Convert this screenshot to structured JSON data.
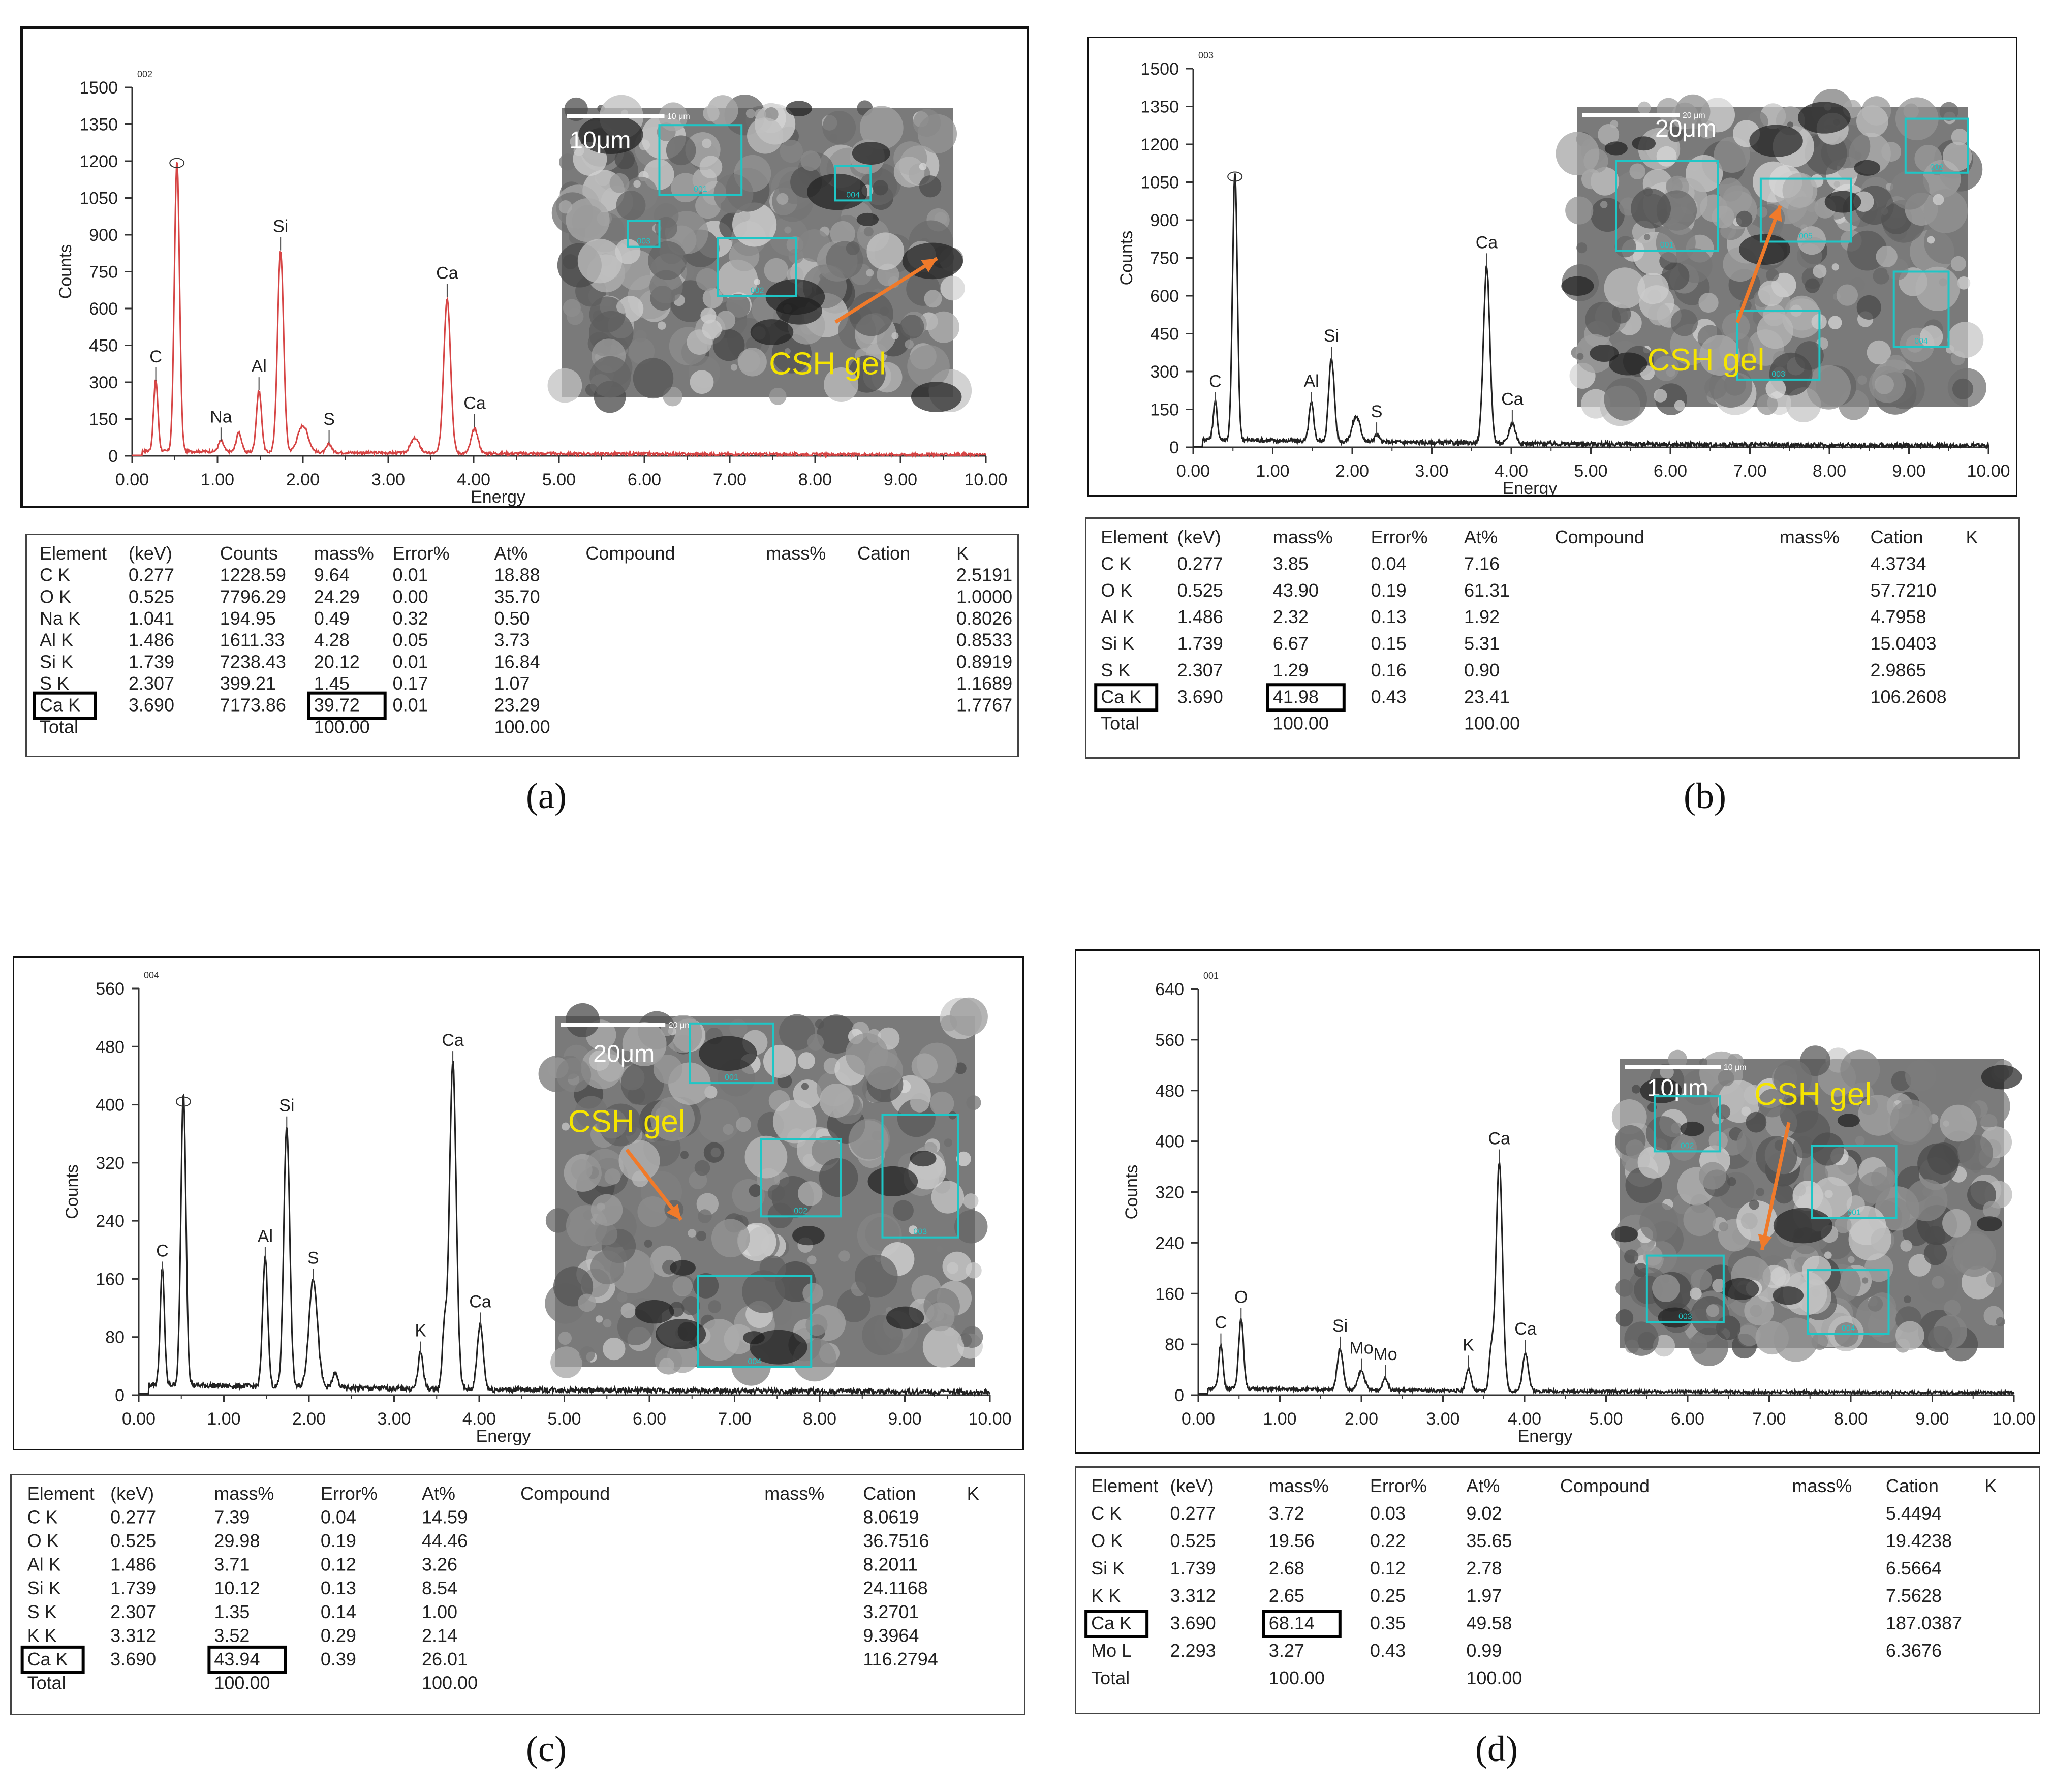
{
  "panels": [
    {
      "caption": "(a)",
      "chart_data": {
        "type": "line",
        "xlabel": "Energy",
        "ylabel": "Counts",
        "spectrum_label": "002",
        "xlim": [
          0,
          10
        ],
        "ylim": [
          0,
          1500
        ],
        "xticks": [
          "0.00",
          "1.00",
          "2.00",
          "3.00",
          "4.00",
          "5.00",
          "6.00",
          "7.00",
          "8.00",
          "9.00",
          "10.00"
        ],
        "yticks": [
          "0",
          "150",
          "300",
          "450",
          "600",
          "750",
          "900",
          "1050",
          "1200",
          "1350",
          "1500"
        ],
        "line_color": "#d64545",
        "baseline": 18,
        "peaks": [
          {
            "x": 0.277,
            "y": 290,
            "w": 0.025
          },
          {
            "x": 0.525,
            "y": 1180,
            "w": 0.03
          },
          {
            "x": 1.041,
            "y": 45,
            "w": 0.03
          },
          {
            "x": 1.25,
            "y": 80,
            "w": 0.03
          },
          {
            "x": 1.486,
            "y": 250,
            "w": 0.03
          },
          {
            "x": 1.739,
            "y": 820,
            "w": 0.035
          },
          {
            "x": 2.0,
            "y": 110,
            "w": 0.06
          },
          {
            "x": 2.307,
            "y": 35,
            "w": 0.03
          },
          {
            "x": 3.312,
            "y": 60,
            "w": 0.05
          },
          {
            "x": 3.69,
            "y": 630,
            "w": 0.04
          },
          {
            "x": 4.012,
            "y": 100,
            "w": 0.04
          }
        ],
        "annotations": [
          {
            "label": "C",
            "x": 0.277,
            "y": 290
          },
          {
            "label": "Na",
            "x": 1.041,
            "y": 45
          },
          {
            "label": "Al",
            "x": 1.486,
            "y": 250
          },
          {
            "label": "Si",
            "x": 1.739,
            "y": 820
          },
          {
            "label": "S",
            "x": 2.307,
            "y": 35
          },
          {
            "label": "Ca",
            "x": 3.69,
            "y": 630
          },
          {
            "label": "Ca",
            "x": 4.012,
            "y": 100
          }
        ]
      },
      "sem": {
        "scale_label": "10μm",
        "scale_small": "10 μm",
        "csh_label": "CSH gel",
        "boxes": [
          "001",
          "002",
          "003",
          "004"
        ]
      },
      "table": {
        "headers": [
          "Element",
          "(keV)",
          "Counts",
          "mass%",
          "Error%",
          "At%",
          "Compound",
          "mass%",
          "Cation",
          "K"
        ],
        "rows": [
          [
            "C  K",
            "0.277",
            "1228.59",
            "9.64",
            "0.01",
            "18.88",
            "",
            "",
            "",
            "2.5191"
          ],
          [
            "O  K",
            "0.525",
            "7796.29",
            "24.29",
            "0.00",
            "35.70",
            "",
            "",
            "",
            "1.0000"
          ],
          [
            "Na K",
            "1.041",
            "194.95",
            "0.49",
            "0.32",
            "0.50",
            "",
            "",
            "",
            "0.8026"
          ],
          [
            "Al K",
            "1.486",
            "1611.33",
            "4.28",
            "0.05",
            "3.73",
            "",
            "",
            "",
            "0.8533"
          ],
          [
            "Si K",
            "1.739",
            "7238.43",
            "20.12",
            "0.01",
            "16.84",
            "",
            "",
            "",
            "0.8919"
          ],
          [
            "S  K",
            "2.307",
            "399.21",
            "1.45",
            "0.17",
            "1.07",
            "",
            "",
            "",
            "1.1689"
          ],
          [
            "Ca K",
            "3.690",
            "7173.86",
            "39.72",
            "0.01",
            "23.29",
            "",
            "",
            "",
            "1.7767"
          ],
          [
            "Total",
            "",
            "",
            "100.00",
            "",
            "100.00",
            "",
            "",
            "",
            ""
          ]
        ]
      }
    },
    {
      "caption": "(b)",
      "chart_data": {
        "type": "line",
        "xlabel": "Energy",
        "ylabel": "Counts",
        "spectrum_label": "003",
        "xlim": [
          0,
          10
        ],
        "ylim": [
          0,
          1500
        ],
        "xticks": [
          "0.00",
          "1.00",
          "2.00",
          "3.00",
          "4.00",
          "5.00",
          "6.00",
          "7.00",
          "8.00",
          "9.00",
          "10.00"
        ],
        "yticks": [
          "0",
          "150",
          "300",
          "450",
          "600",
          "750",
          "900",
          "1050",
          "1200",
          "1350",
          "1500"
        ],
        "line_color": "#222222",
        "baseline": 30,
        "peaks": [
          {
            "x": 0.277,
            "y": 150,
            "w": 0.025
          },
          {
            "x": 0.525,
            "y": 1060,
            "w": 0.03
          },
          {
            "x": 1.486,
            "y": 150,
            "w": 0.03
          },
          {
            "x": 1.739,
            "y": 330,
            "w": 0.035
          },
          {
            "x": 2.05,
            "y": 100,
            "w": 0.05
          },
          {
            "x": 2.307,
            "y": 30,
            "w": 0.03
          },
          {
            "x": 3.69,
            "y": 700,
            "w": 0.04
          },
          {
            "x": 4.012,
            "y": 80,
            "w": 0.04
          }
        ],
        "annotations": [
          {
            "label": "C",
            "x": 0.277,
            "y": 150
          },
          {
            "label": "Al",
            "x": 1.486,
            "y": 150
          },
          {
            "label": "Si",
            "x": 1.739,
            "y": 330
          },
          {
            "label": "S",
            "x": 2.307,
            "y": 30
          },
          {
            "label": "Ca",
            "x": 3.69,
            "y": 700
          },
          {
            "label": "Ca",
            "x": 4.012,
            "y": 80
          }
        ]
      },
      "sem": {
        "scale_label": "20μm",
        "scale_small": "20 μm",
        "csh_label": "CSH gel",
        "boxes": [
          "001",
          "002",
          "003",
          "004",
          "005"
        ]
      },
      "table": {
        "headers": [
          "Element",
          "(keV)",
          "mass%",
          "Error%",
          "At%",
          "Compound",
          "mass%",
          "Cation",
          "K"
        ],
        "rows": [
          [
            "C  K",
            "0.277",
            "3.85",
            "0.04",
            "7.16",
            "",
            "",
            "4.3734",
            ""
          ],
          [
            "O  K",
            "0.525",
            "43.90",
            "0.19",
            "61.31",
            "",
            "",
            "57.7210",
            ""
          ],
          [
            "Al K",
            "1.486",
            "2.32",
            "0.13",
            "1.92",
            "",
            "",
            "4.7958",
            ""
          ],
          [
            "Si K",
            "1.739",
            "6.67",
            "0.15",
            "5.31",
            "",
            "",
            "15.0403",
            ""
          ],
          [
            "S  K",
            "2.307",
            "1.29",
            "0.16",
            "0.90",
            "",
            "",
            "2.9865",
            ""
          ],
          [
            "Ca K",
            "3.690",
            "41.98",
            "0.43",
            "23.41",
            "",
            "",
            "106.2608",
            ""
          ],
          [
            "Total",
            "",
            "100.00",
            "",
            "100.00",
            "",
            "",
            "",
            ""
          ]
        ]
      }
    },
    {
      "caption": "(c)",
      "chart_data": {
        "type": "line",
        "xlabel": "Energy",
        "ylabel": "Counts",
        "spectrum_label": "004",
        "xlim": [
          0,
          10
        ],
        "ylim": [
          0,
          560
        ],
        "xticks": [
          "0.00",
          "1.00",
          "2.00",
          "3.00",
          "4.00",
          "5.00",
          "6.00",
          "7.00",
          "8.00",
          "9.00",
          "10.00"
        ],
        "yticks": [
          "0",
          "80",
          "160",
          "240",
          "320",
          "400",
          "480",
          "560"
        ],
        "line_color": "#222222",
        "baseline": 12,
        "peaks": [
          {
            "x": 0.277,
            "y": 160,
            "w": 0.025
          },
          {
            "x": 0.525,
            "y": 400,
            "w": 0.03
          },
          {
            "x": 1.486,
            "y": 180,
            "w": 0.03
          },
          {
            "x": 1.739,
            "y": 360,
            "w": 0.035
          },
          {
            "x": 2.05,
            "y": 150,
            "w": 0.05
          },
          {
            "x": 2.307,
            "y": 20,
            "w": 0.03
          },
          {
            "x": 3.312,
            "y": 50,
            "w": 0.03
          },
          {
            "x": 3.59,
            "y": 80,
            "w": 0.025
          },
          {
            "x": 3.69,
            "y": 450,
            "w": 0.04
          },
          {
            "x": 4.012,
            "y": 90,
            "w": 0.035
          }
        ],
        "annotations": [
          {
            "label": "C",
            "x": 0.277,
            "y": 160
          },
          {
            "label": "Al",
            "x": 1.486,
            "y": 180
          },
          {
            "label": "Si",
            "x": 1.739,
            "y": 360
          },
          {
            "label": "S",
            "x": 2.05,
            "y": 150
          },
          {
            "label": "K",
            "x": 3.312,
            "y": 50
          },
          {
            "label": "Ca",
            "x": 3.69,
            "y": 450
          },
          {
            "label": "Ca",
            "x": 4.012,
            "y": 90
          }
        ]
      },
      "sem": {
        "scale_label": "20μm",
        "scale_small": "20 μm",
        "csh_label": "CSH gel",
        "boxes": [
          "001",
          "002",
          "003",
          "004"
        ]
      },
      "table": {
        "headers": [
          "Element",
          "(keV)",
          "mass%",
          "Error%",
          "At%",
          "Compound",
          "mass%",
          "Cation",
          "K"
        ],
        "rows": [
          [
            "C  K",
            "0.277",
            "7.39",
            "0.04",
            "14.59",
            "",
            "",
            "8.0619",
            ""
          ],
          [
            "O  K",
            "0.525",
            "29.98",
            "0.19",
            "44.46",
            "",
            "",
            "36.7516",
            ""
          ],
          [
            "Al K",
            "1.486",
            "3.71",
            "0.12",
            "3.26",
            "",
            "",
            "8.2011",
            ""
          ],
          [
            "Si K",
            "1.739",
            "10.12",
            "0.13",
            "8.54",
            "",
            "",
            "24.1168",
            ""
          ],
          [
            "S  K",
            "2.307",
            "1.35",
            "0.14",
            "1.00",
            "",
            "",
            "3.2701",
            ""
          ],
          [
            "K  K",
            "3.312",
            "3.52",
            "0.29",
            "2.14",
            "",
            "",
            "9.3964",
            ""
          ],
          [
            "Ca K",
            "3.690",
            "43.94",
            "0.39",
            "26.01",
            "",
            "",
            "116.2794",
            ""
          ],
          [
            "Total",
            "",
            "100.00",
            "",
            "100.00",
            "",
            "",
            "",
            ""
          ]
        ]
      }
    },
    {
      "caption": "(d)",
      "chart_data": {
        "type": "line",
        "xlabel": "Energy",
        "ylabel": "Counts",
        "spectrum_label": "001",
        "xlim": [
          0,
          10
        ],
        "ylim": [
          0,
          640
        ],
        "xticks": [
          "0.00",
          "1.00",
          "2.00",
          "3.00",
          "4.00",
          "5.00",
          "6.00",
          "7.00",
          "8.00",
          "9.00",
          "10.00"
        ],
        "yticks": [
          "0",
          "80",
          "160",
          "240",
          "320",
          "400",
          "480",
          "560",
          "640"
        ],
        "line_color": "#222222",
        "baseline": 8,
        "peaks": [
          {
            "x": 0.277,
            "y": 70,
            "w": 0.025
          },
          {
            "x": 0.525,
            "y": 110,
            "w": 0.03
          },
          {
            "x": 1.739,
            "y": 65,
            "w": 0.035
          },
          {
            "x": 2.0,
            "y": 30,
            "w": 0.04
          },
          {
            "x": 2.293,
            "y": 20,
            "w": 0.03
          },
          {
            "x": 3.312,
            "y": 35,
            "w": 0.03
          },
          {
            "x": 3.59,
            "y": 60,
            "w": 0.025
          },
          {
            "x": 3.69,
            "y": 360,
            "w": 0.04
          },
          {
            "x": 4.012,
            "y": 60,
            "w": 0.035
          }
        ],
        "annotations": [
          {
            "label": "C",
            "x": 0.277,
            "y": 70
          },
          {
            "label": "O",
            "x": 0.525,
            "y": 110
          },
          {
            "label": "Si",
            "x": 1.739,
            "y": 65
          },
          {
            "label": "Mo",
            "x": 2.0,
            "y": 30
          },
          {
            "label": "Mo",
            "x": 2.293,
            "y": 20
          },
          {
            "label": "K",
            "x": 3.312,
            "y": 35
          },
          {
            "label": "Ca",
            "x": 3.69,
            "y": 360
          },
          {
            "label": "Ca",
            "x": 4.012,
            "y": 60
          }
        ]
      },
      "sem": {
        "scale_label": "10μm",
        "scale_small": "10 μm",
        "csh_label": "CSH gel",
        "boxes": [
          "001",
          "002",
          "003",
          "004"
        ]
      },
      "table": {
        "headers": [
          "Element",
          "(keV)",
          "mass%",
          "Error%",
          "At%",
          "Compound",
          "mass%",
          "Cation",
          "K"
        ],
        "rows": [
          [
            "C  K",
            "0.277",
            "3.72",
            "0.03",
            "9.02",
            "",
            "",
            "5.4494",
            ""
          ],
          [
            "O  K",
            "0.525",
            "19.56",
            "0.22",
            "35.65",
            "",
            "",
            "19.4238",
            ""
          ],
          [
            "Si K",
            "1.739",
            "2.68",
            "0.12",
            "2.78",
            "",
            "",
            "6.5664",
            ""
          ],
          [
            "K  K",
            "3.312",
            "2.65",
            "0.25",
            "1.97",
            "",
            "",
            "7.5628",
            ""
          ],
          [
            "Ca K",
            "3.690",
            "68.14",
            "0.35",
            "49.58",
            "",
            "",
            "187.0387",
            ""
          ],
          [
            "Mo L",
            "2.293",
            "3.27",
            "0.43",
            "0.99",
            "",
            "",
            "6.3676",
            ""
          ],
          [
            "Total",
            "",
            "100.00",
            "",
            "100.00",
            "",
            "",
            "",
            ""
          ]
        ]
      }
    }
  ]
}
